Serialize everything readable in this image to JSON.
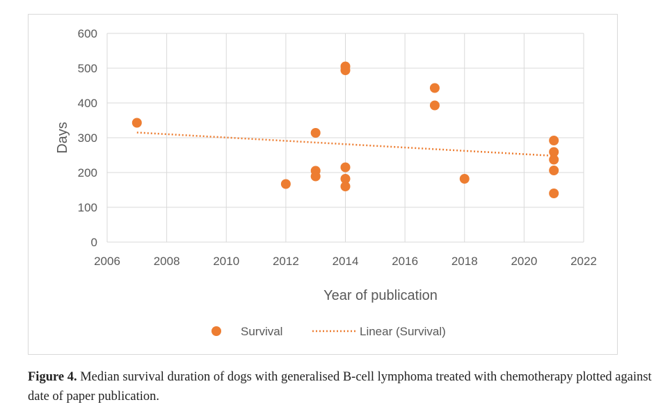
{
  "chart_data": {
    "type": "scatter",
    "xlabel": "Year of publication",
    "ylabel": "Days",
    "xlim": [
      2006,
      2022
    ],
    "ylim": [
      0,
      600
    ],
    "x_ticks": [
      "2006",
      "2008",
      "2010",
      "2012",
      "2014",
      "2016",
      "2018",
      "2020",
      "2022"
    ],
    "y_ticks": [
      "0",
      "100",
      "200",
      "300",
      "400",
      "500",
      "600"
    ],
    "grid": true,
    "legend_position": "bottom",
    "series": [
      {
        "name": "Survival",
        "color": "#ed7d31",
        "points": [
          {
            "x": 2007,
            "y": 343
          },
          {
            "x": 2012,
            "y": 167
          },
          {
            "x": 2013,
            "y": 314
          },
          {
            "x": 2013,
            "y": 205
          },
          {
            "x": 2013,
            "y": 189
          },
          {
            "x": 2014,
            "y": 505
          },
          {
            "x": 2014,
            "y": 494
          },
          {
            "x": 2014,
            "y": 215
          },
          {
            "x": 2014,
            "y": 182
          },
          {
            "x": 2014,
            "y": 160
          },
          {
            "x": 2017,
            "y": 443
          },
          {
            "x": 2017,
            "y": 393
          },
          {
            "x": 2018,
            "y": 182
          },
          {
            "x": 2021,
            "y": 292
          },
          {
            "x": 2021,
            "y": 259
          },
          {
            "x": 2021,
            "y": 237
          },
          {
            "x": 2021,
            "y": 206
          },
          {
            "x": 2021,
            "y": 140
          }
        ]
      }
    ],
    "trendline": {
      "name": "Linear (Survival)",
      "color": "#ed7d31",
      "style": "dotted",
      "start": {
        "x": 2007,
        "y": 315
      },
      "end": {
        "x": 2021,
        "y": 248
      }
    }
  },
  "caption": {
    "label": "Figure 4.",
    "text": " Median survival duration of dogs with generalised B-cell lymphoma treated with chemotherapy plotted against date of paper publication."
  }
}
